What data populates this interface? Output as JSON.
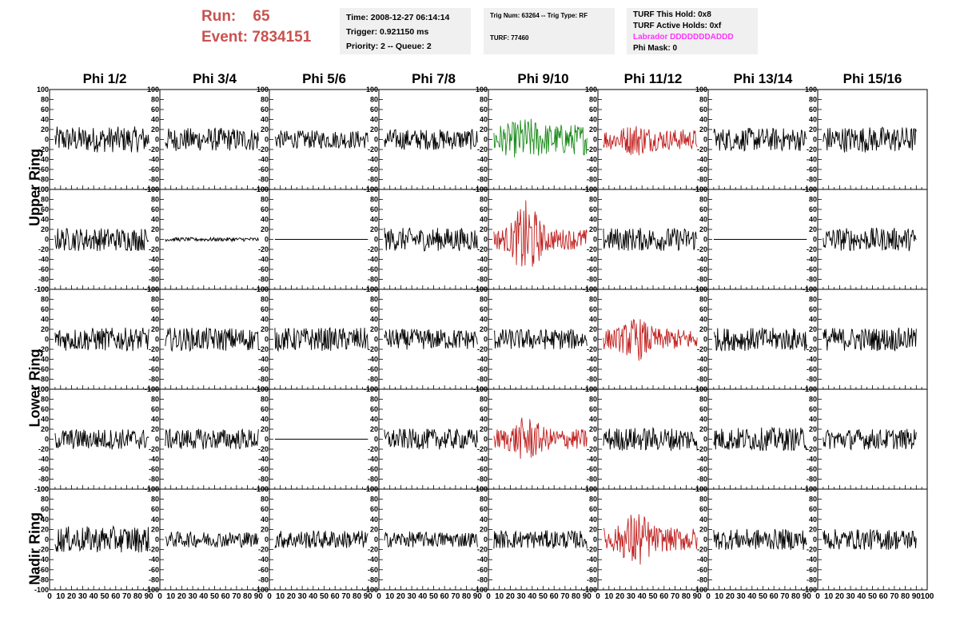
{
  "header": {
    "run_label": "Run:    65",
    "event_label": "Event: 7834151",
    "info1": [
      "Time: 2008-12-27 06:14:14",
      "Trigger: 0.921150 ms",
      "Priority: 2 -- Queue: 2"
    ],
    "info2": [
      "Trig Num: 63264 -- Trig Type: RF",
      "TURF: 77460"
    ],
    "info3": [
      "TURF This Hold: 0x8",
      "TURF Active Holds: 0xf",
      "Labrador DDDDDDDADDD",
      "Phi Mask: 0"
    ]
  },
  "colors": {
    "trace_default": "#000000",
    "trace_green": "#1a8a1a",
    "trace_red": "#c0201f",
    "run_text": "#c8524f",
    "magenta": "#ff33ff"
  },
  "chart_data": {
    "type": "line",
    "columns": [
      "Phi 1/2",
      "Phi 3/4",
      "Phi 5/6",
      "Phi 7/8",
      "Phi 9/10",
      "Phi 11/12",
      "Phi 13/14",
      "Phi 15/16"
    ],
    "ring_labels": [
      "Upper Ring",
      "Lower Ring",
      "Nadir Ring"
    ],
    "ylim": [
      -100,
      100
    ],
    "xlim": [
      0,
      100
    ],
    "yticks": [
      -100,
      -80,
      -60,
      -40,
      -20,
      0,
      20,
      40,
      60,
      80,
      100
    ],
    "ytick_labels": [
      "-100",
      "-80",
      "-60",
      "-40",
      "-20",
      "0",
      "20",
      "40",
      "60",
      "80",
      "100"
    ],
    "xticks": [
      0,
      10,
      20,
      30,
      40,
      50,
      60,
      70,
      80,
      90,
      100
    ],
    "xtick_labels": [
      "0",
      "10",
      "20",
      "30",
      "40",
      "50",
      "60",
      "70",
      "80",
      "90",
      "100"
    ],
    "panels": [
      [
        {
          "amp": 20,
          "color": "black"
        },
        {
          "amp": 18,
          "color": "black"
        },
        {
          "amp": 14,
          "color": "black"
        },
        {
          "amp": 16,
          "color": "black"
        },
        {
          "amp": 24,
          "color": "green",
          "burst": 10
        },
        {
          "amp": 16,
          "color": "red",
          "burst": 10
        },
        {
          "amp": 18,
          "color": "black"
        },
        {
          "amp": 20,
          "color": "black"
        }
      ],
      [
        {
          "amp": 18,
          "color": "black"
        },
        {
          "amp": 3,
          "color": "black"
        },
        {
          "amp": 0,
          "color": "black"
        },
        {
          "amp": 18,
          "color": "black"
        },
        {
          "amp": 16,
          "color": "red",
          "burst": 45
        },
        {
          "amp": 18,
          "color": "black"
        },
        {
          "amp": 0,
          "color": "black"
        },
        {
          "amp": 18,
          "color": "black"
        }
      ],
      [
        {
          "amp": 18,
          "color": "black"
        },
        {
          "amp": 18,
          "color": "black"
        },
        {
          "amp": 18,
          "color": "black"
        },
        {
          "amp": 16,
          "color": "black"
        },
        {
          "amp": 16,
          "color": "black"
        },
        {
          "amp": 16,
          "color": "red",
          "burst": 18
        },
        {
          "amp": 18,
          "color": "black"
        },
        {
          "amp": 18,
          "color": "black"
        }
      ],
      [
        {
          "amp": 16,
          "color": "black"
        },
        {
          "amp": 16,
          "color": "black"
        },
        {
          "amp": 0,
          "color": "black"
        },
        {
          "amp": 16,
          "color": "black"
        },
        {
          "amp": 16,
          "color": "red",
          "burst": 20
        },
        {
          "amp": 18,
          "color": "black"
        },
        {
          "amp": 18,
          "color": "black"
        },
        {
          "amp": 16,
          "color": "black"
        }
      ],
      [
        {
          "amp": 20,
          "color": "black"
        },
        {
          "amp": 12,
          "color": "black"
        },
        {
          "amp": 14,
          "color": "black"
        },
        {
          "amp": 12,
          "color": "black"
        },
        {
          "amp": 14,
          "color": "black"
        },
        {
          "amp": 18,
          "color": "red",
          "burst": 28
        },
        {
          "amp": 16,
          "color": "black"
        },
        {
          "amp": 16,
          "color": "black"
        }
      ]
    ]
  }
}
